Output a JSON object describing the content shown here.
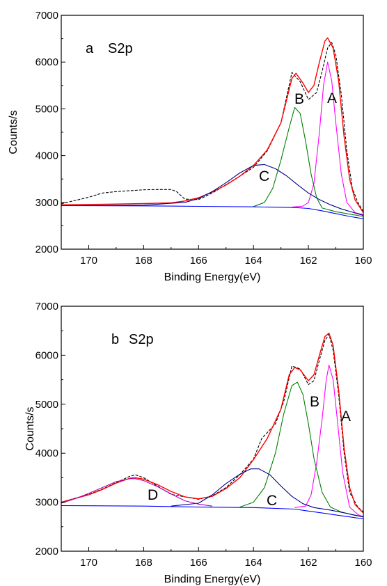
{
  "chart_data": [
    {
      "type": "line",
      "panel_label": "a",
      "title": "S2p",
      "xlabel": "Binding Energy(eV)",
      "ylabel": "Counts/s",
      "xlim": [
        171,
        160
      ],
      "ylim": [
        2000,
        7000
      ],
      "x_reversed": true,
      "xticks": [
        170,
        168,
        166,
        164,
        162,
        160
      ],
      "yticks": [
        2000,
        3000,
        4000,
        5000,
        6000,
        7000
      ],
      "grid": false,
      "colors": {
        "measured": "#000000",
        "fit_envelope": "#ff0000",
        "A": "#ff00ff",
        "B": "#008000",
        "C": "#00008b",
        "background": "#0000ff"
      },
      "series": [
        {
          "role": "measured",
          "style": "dashed",
          "points": [
            [
              171,
              2970
            ],
            [
              170.5,
              3040
            ],
            [
              170,
              3110
            ],
            [
              169.5,
              3200
            ],
            [
              169,
              3230
            ],
            [
              168.5,
              3250
            ],
            [
              168,
              3270
            ],
            [
              167.5,
              3275
            ],
            [
              167,
              3275
            ],
            [
              166.8,
              3230
            ],
            [
              166.5,
              3070
            ],
            [
              166,
              3060
            ],
            [
              165.5,
              3200
            ],
            [
              165,
              3380
            ],
            [
              164.5,
              3560
            ],
            [
              164,
              3750
            ],
            [
              163.5,
              4100
            ],
            [
              163,
              4700
            ],
            [
              162.6,
              5780
            ],
            [
              162.3,
              5580
            ],
            [
              162,
              5200
            ],
            [
              161.7,
              5350
            ],
            [
              161.5,
              5800
            ],
            [
              161.3,
              6300
            ],
            [
              161.15,
              6420
            ],
            [
              161,
              6150
            ],
            [
              160.8,
              5300
            ],
            [
              160.6,
              4100
            ],
            [
              160.4,
              3300
            ],
            [
              160.2,
              3000
            ],
            [
              160,
              2800
            ]
          ]
        },
        {
          "role": "fit_envelope",
          "style": "solid",
          "points": [
            [
              171,
              2950
            ],
            [
              170,
              2955
            ],
            [
              169,
              2965
            ],
            [
              168,
              2975
            ],
            [
              167,
              2990
            ],
            [
              166.5,
              3030
            ],
            [
              166,
              3100
            ],
            [
              165.5,
              3220
            ],
            [
              165,
              3370
            ],
            [
              164.5,
              3560
            ],
            [
              164,
              3790
            ],
            [
              163.5,
              4120
            ],
            [
              163,
              4700
            ],
            [
              162.6,
              5650
            ],
            [
              162.45,
              5760
            ],
            [
              162.2,
              5550
            ],
            [
              162,
              5350
            ],
            [
              161.8,
              5500
            ],
            [
              161.6,
              6000
            ],
            [
              161.4,
              6450
            ],
            [
              161.3,
              6520
            ],
            [
              161.1,
              6300
            ],
            [
              160.9,
              5600
            ],
            [
              160.7,
              4400
            ],
            [
              160.5,
              3500
            ],
            [
              160.3,
              3050
            ],
            [
              160,
              2780
            ]
          ]
        },
        {
          "name": "A",
          "role": "component",
          "style": "solid",
          "points": [
            [
              162.6,
              2900
            ],
            [
              162.2,
              2920
            ],
            [
              162,
              3000
            ],
            [
              161.8,
              3400
            ],
            [
              161.6,
              4500
            ],
            [
              161.45,
              5500
            ],
            [
              161.3,
              6000
            ],
            [
              161.15,
              5600
            ],
            [
              161,
              4700
            ],
            [
              160.8,
              3600
            ],
            [
              160.6,
              3000
            ],
            [
              160.3,
              2780
            ],
            [
              160,
              2740
            ]
          ]
        },
        {
          "name": "B",
          "role": "component",
          "style": "solid",
          "points": [
            [
              164,
              2910
            ],
            [
              163.6,
              3000
            ],
            [
              163.3,
              3300
            ],
            [
              163,
              3900
            ],
            [
              162.7,
              4600
            ],
            [
              162.5,
              5030
            ],
            [
              162.3,
              4900
            ],
            [
              162.1,
              4300
            ],
            [
              161.9,
              3600
            ],
            [
              161.7,
              3100
            ],
            [
              161.5,
              2880
            ],
            [
              161,
              2800
            ],
            [
              160,
              2700
            ]
          ]
        },
        {
          "name": "C",
          "role": "component",
          "style": "solid",
          "points": [
            [
              171,
              2930
            ],
            [
              168,
              2940
            ],
            [
              166.5,
              3000
            ],
            [
              166,
              3080
            ],
            [
              165.5,
              3230
            ],
            [
              165,
              3420
            ],
            [
              164.5,
              3630
            ],
            [
              164,
              3790
            ],
            [
              163.6,
              3810
            ],
            [
              163.2,
              3720
            ],
            [
              162.8,
              3570
            ],
            [
              162.4,
              3380
            ],
            [
              162,
              3200
            ],
            [
              161.6,
              3060
            ],
            [
              161.2,
              2950
            ],
            [
              160.8,
              2860
            ],
            [
              160.4,
              2790
            ],
            [
              160,
              2720
            ]
          ]
        },
        {
          "role": "background",
          "style": "solid",
          "points": [
            [
              171,
              2930
            ],
            [
              168,
              2925
            ],
            [
              166,
              2915
            ],
            [
              164,
              2905
            ],
            [
              162.5,
              2890
            ],
            [
              162,
              2870
            ],
            [
              161.5,
              2820
            ],
            [
              161,
              2760
            ],
            [
              160.5,
              2700
            ],
            [
              160,
              2650
            ]
          ]
        }
      ],
      "annotations": [
        "A",
        "B",
        "C"
      ]
    },
    {
      "type": "line",
      "panel_label": "b",
      "title": "S2p",
      "xlabel": "Binding Energy(eV)",
      "ylabel": "Counts/s",
      "xlim": [
        171,
        160
      ],
      "ylim": [
        2000,
        7000
      ],
      "x_reversed": true,
      "xticks": [
        170,
        168,
        166,
        164,
        162,
        160
      ],
      "yticks": [
        2000,
        3000,
        4000,
        5000,
        6000,
        7000
      ],
      "grid": false,
      "colors": {
        "measured": "#000000",
        "fit_envelope": "#ff0000",
        "A": "#ff00ff",
        "B": "#008000",
        "C": "#00008b",
        "D": "#b000b0",
        "background": "#0000ff"
      },
      "series": [
        {
          "role": "measured",
          "style": "dashed",
          "points": [
            [
              171,
              3000
            ],
            [
              170,
              3160
            ],
            [
              169.5,
              3270
            ],
            [
              169,
              3400
            ],
            [
              168.5,
              3530
            ],
            [
              168.3,
              3560
            ],
            [
              168,
              3500
            ],
            [
              167.5,
              3330
            ],
            [
              167,
              3160
            ],
            [
              166.5,
              3110
            ],
            [
              166,
              3060
            ],
            [
              165.5,
              3130
            ],
            [
              165,
              3300
            ],
            [
              164.5,
              3560
            ],
            [
              164,
              3880
            ],
            [
              163.7,
              4300
            ],
            [
              163.2,
              4600
            ],
            [
              162.9,
              5050
            ],
            [
              162.6,
              5780
            ],
            [
              162.3,
              5720
            ],
            [
              162,
              5400
            ],
            [
              161.8,
              5480
            ],
            [
              161.6,
              5900
            ],
            [
              161.4,
              6300
            ],
            [
              161.25,
              6430
            ],
            [
              161.1,
              6100
            ],
            [
              160.9,
              5200
            ],
            [
              160.7,
              4000
            ],
            [
              160.5,
              3200
            ],
            [
              160.2,
              2900
            ],
            [
              160,
              2800
            ]
          ]
        },
        {
          "role": "fit_envelope",
          "style": "solid",
          "points": [
            [
              171,
              3000
            ],
            [
              170,
              3150
            ],
            [
              169.5,
              3260
            ],
            [
              169,
              3390
            ],
            [
              168.5,
              3490
            ],
            [
              168.3,
              3500
            ],
            [
              168,
              3470
            ],
            [
              167.5,
              3360
            ],
            [
              167,
              3220
            ],
            [
              166.5,
              3110
            ],
            [
              166,
              3070
            ],
            [
              165.5,
              3120
            ],
            [
              165,
              3280
            ],
            [
              164.5,
              3500
            ],
            [
              164,
              3870
            ],
            [
              163.5,
              4300
            ],
            [
              163,
              4900
            ],
            [
              162.7,
              5600
            ],
            [
              162.5,
              5750
            ],
            [
              162.3,
              5700
            ],
            [
              162,
              5480
            ],
            [
              161.8,
              5600
            ],
            [
              161.6,
              6000
            ],
            [
              161.4,
              6380
            ],
            [
              161.25,
              6450
            ],
            [
              161.1,
              6200
            ],
            [
              160.9,
              5300
            ],
            [
              160.7,
              4100
            ],
            [
              160.5,
              3300
            ],
            [
              160.3,
              2950
            ],
            [
              160,
              2780
            ]
          ]
        },
        {
          "name": "A",
          "role": "component",
          "style": "solid",
          "points": [
            [
              162.5,
              2890
            ],
            [
              162.1,
              2920
            ],
            [
              161.9,
              3150
            ],
            [
              161.7,
              3800
            ],
            [
              161.5,
              4700
            ],
            [
              161.35,
              5500
            ],
            [
              161.25,
              5800
            ],
            [
              161.1,
              5500
            ],
            [
              160.95,
              4700
            ],
            [
              160.75,
              3600
            ],
            [
              160.5,
              2900
            ],
            [
              160.2,
              2750
            ],
            [
              160,
              2700
            ]
          ]
        },
        {
          "name": "B",
          "role": "component",
          "style": "solid",
          "points": [
            [
              164.5,
              2900
            ],
            [
              164,
              3000
            ],
            [
              163.6,
              3300
            ],
            [
              163.2,
              4000
            ],
            [
              162.9,
              4800
            ],
            [
              162.6,
              5380
            ],
            [
              162.4,
              5450
            ],
            [
              162.2,
              5200
            ],
            [
              162,
              4600
            ],
            [
              161.8,
              3900
            ],
            [
              161.5,
              3200
            ],
            [
              161.2,
              2900
            ],
            [
              160.8,
              2800
            ],
            [
              160.3,
              2730
            ],
            [
              160,
              2700
            ]
          ]
        },
        {
          "name": "C",
          "role": "component",
          "style": "solid",
          "points": [
            [
              167,
              2920
            ],
            [
              166,
              2980
            ],
            [
              165.5,
              3150
            ],
            [
              165,
              3380
            ],
            [
              164.5,
              3570
            ],
            [
              164.1,
              3680
            ],
            [
              163.8,
              3680
            ],
            [
              163.4,
              3560
            ],
            [
              163,
              3330
            ],
            [
              162.6,
              3120
            ],
            [
              162.2,
              2970
            ],
            [
              161.8,
              2890
            ],
            [
              161.2,
              2840
            ],
            [
              160.5,
              2760
            ],
            [
              160,
              2700
            ]
          ]
        },
        {
          "name": "D",
          "role": "component",
          "style": "solid",
          "points": [
            [
              171,
              2980
            ],
            [
              170.5,
              3070
            ],
            [
              170,
              3180
            ],
            [
              169.5,
              3300
            ],
            [
              169,
              3420
            ],
            [
              168.5,
              3480
            ],
            [
              168.3,
              3480
            ],
            [
              168,
              3440
            ],
            [
              167.5,
              3320
            ],
            [
              167,
              3170
            ],
            [
              166.5,
              3030
            ],
            [
              166,
              2960
            ],
            [
              165.5,
              2920
            ]
          ]
        },
        {
          "role": "background",
          "style": "solid",
          "points": [
            [
              171,
              2930
            ],
            [
              168,
              2920
            ],
            [
              166,
              2900
            ],
            [
              164,
              2890
            ],
            [
              162.5,
              2860
            ],
            [
              162,
              2820
            ],
            [
              161.5,
              2780
            ],
            [
              161,
              2740
            ],
            [
              160.5,
              2700
            ],
            [
              160,
              2660
            ]
          ]
        }
      ],
      "annotations": [
        "A",
        "B",
        "C",
        "D"
      ]
    }
  ]
}
